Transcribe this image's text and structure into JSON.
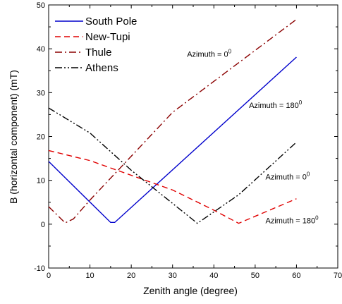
{
  "chart_data": {
    "type": "line",
    "xlabel": "Zenith angle (degree)",
    "ylabel": "B (horizontal component) (mT)",
    "xlim": [
      0,
      70
    ],
    "ylim": [
      -10,
      50
    ],
    "xticks": [
      "0",
      "10",
      "20",
      "30",
      "40",
      "50",
      "60",
      "70"
    ],
    "yticks": [
      "-10",
      "0",
      "10",
      "20",
      "30",
      "40",
      "50"
    ],
    "grid": false,
    "legend_position": "top-left",
    "series": [
      {
        "name": "South Pole",
        "color": "#0000cc",
        "dash": "solid",
        "x": [
          0,
          15,
          16,
          60
        ],
        "y": [
          14.3,
          0.4,
          0.4,
          38.1
        ]
      },
      {
        "name": "New-Tupi",
        "color": "#e00000",
        "dash": "dashed",
        "x": [
          0,
          10,
          30,
          40,
          46,
          60
        ],
        "y": [
          16.8,
          14.5,
          7.8,
          3.2,
          0.2,
          5.8
        ]
      },
      {
        "name": "Thule",
        "color": "#8b0000",
        "dash": "dashdot",
        "x": [
          0,
          4,
          6,
          10,
          30,
          60
        ],
        "y": [
          4.0,
          0.3,
          1.2,
          5.5,
          25.5,
          46.7
        ]
      },
      {
        "name": "Athens",
        "color": "#000000",
        "dash": "dashdotdot",
        "x": [
          0,
          10,
          20,
          36,
          46,
          60
        ],
        "y": [
          26.5,
          20.8,
          12.3,
          0.2,
          6.7,
          18.7
        ]
      }
    ],
    "annotations": [
      {
        "label": "Azimuth = 0",
        "sup": "0",
        "x": 33.5,
        "y": 38.2
      },
      {
        "label": "Azimuth = 180",
        "sup": "0",
        "x": 48.5,
        "y": 26.5
      },
      {
        "label": "Azimuth = 0",
        "sup": "0",
        "x": 52.5,
        "y": 10.2
      },
      {
        "label": "Azimuth = 180",
        "sup": "0",
        "x": 52.5,
        "y": 0.2
      }
    ]
  }
}
